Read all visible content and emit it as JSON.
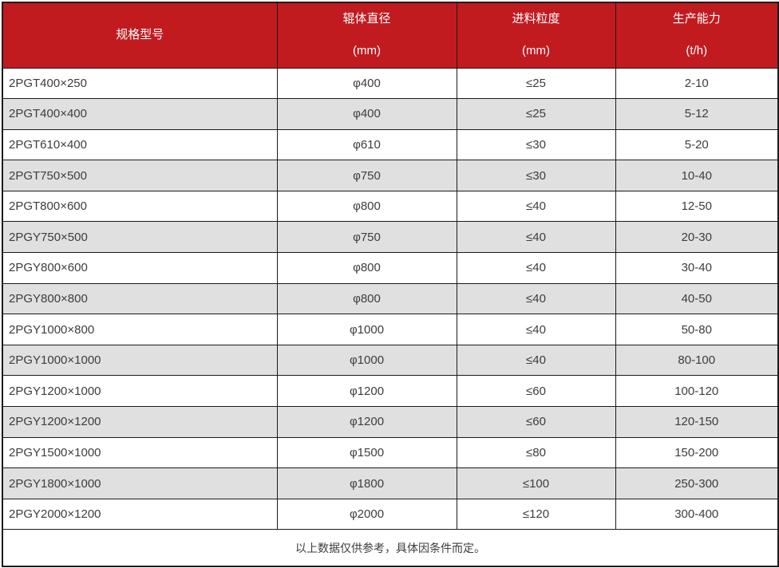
{
  "chart_data": {
    "type": "table",
    "columns": [
      {
        "label": "规格型号",
        "unit": ""
      },
      {
        "label": "辊体直径",
        "unit": "(mm)"
      },
      {
        "label": "进料粒度",
        "unit": "(mm)"
      },
      {
        "label": "生产能力",
        "unit": "(t/h)"
      }
    ],
    "rows": [
      [
        "2PGT400×250",
        "φ400",
        "≤25",
        "2-10"
      ],
      [
        "2PGT400×400",
        "φ400",
        "≤25",
        "5-12"
      ],
      [
        "2PGT610×400",
        "φ610",
        "≤30",
        "5-20"
      ],
      [
        "2PGT750×500",
        "φ750",
        "≤30",
        "10-40"
      ],
      [
        "2PGT800×600",
        "φ800",
        "≤40",
        "12-50"
      ],
      [
        "2PGY750×500",
        "φ750",
        "≤40",
        "20-30"
      ],
      [
        "2PGY800×600",
        "φ800",
        "≤40",
        "30-40"
      ],
      [
        "2PGY800×800",
        "φ800",
        "≤40",
        "40-50"
      ],
      [
        "2PGY1000×800",
        "φ1000",
        "≤40",
        "50-80"
      ],
      [
        "2PGY1000×1000",
        "φ1000",
        "≤40",
        "80-100"
      ],
      [
        "2PGY1200×1000",
        "φ1200",
        "≤60",
        "100-120"
      ],
      [
        "2PGY1200×1200",
        "φ1200",
        "≤60",
        "120-150"
      ],
      [
        "2PGY1500×1000",
        "φ1500",
        "≤80",
        "150-200"
      ],
      [
        "2PGY1800×1000",
        "φ1800",
        "≤100",
        "250-300"
      ],
      [
        "2PGY2000×1200",
        "φ2000",
        "≤120",
        "300-400"
      ]
    ],
    "footnote": "以上数据仅供参考，具体因条件而定。"
  },
  "colors": {
    "header_bg": "#c11b20",
    "header_text": "#ffffff",
    "alt_row_bg": "#e0e0e0",
    "border": "#1b1b1b",
    "body_text": "#3d3d3d"
  }
}
